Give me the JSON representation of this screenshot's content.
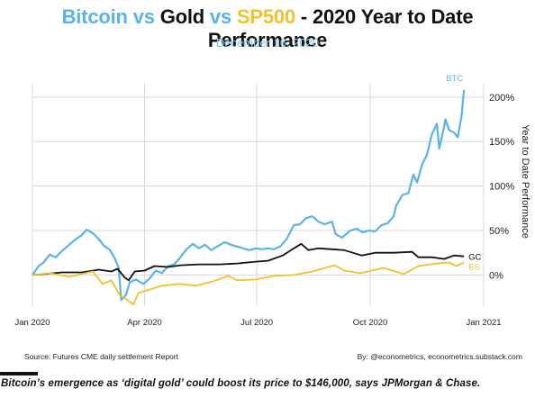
{
  "header": {
    "title_parts": [
      "Bitcoin",
      "vs",
      "Gold",
      "vs",
      "SP500",
      "- 2020 Year to Date Performance"
    ],
    "subtitle": "December 16, 2020"
  },
  "footer": {
    "source": "Source: Futures CME daily settlement Report",
    "byline": "By: @econometrics, econometrics.substack.com"
  },
  "caption": "Bitcoin’s emergence as ‘digital gold’ could boost its price to $146,000, says JPMorgan & Chase.",
  "colors": {
    "btc": "#5ab4e5",
    "gold": "#111111",
    "sp": "#f2c12e",
    "grid": "#d8d8d8"
  },
  "chart_data": {
    "type": "line",
    "title": "Bitcoin vs Gold vs SP500 - 2020 Year to Date Performance",
    "subtitle": "December 16, 2020",
    "ylabel": "Year to Date Performance",
    "xlabel": "",
    "y_unit": "%",
    "ylim": [
      -35,
      215
    ],
    "xlim": [
      "2020-01-01",
      "2021-01-01"
    ],
    "x_ticks": [
      {
        "date": "2020-01-01",
        "label": "Jan 2020"
      },
      {
        "date": "2020-04-01",
        "label": "Apr 2020"
      },
      {
        "date": "2020-07-01",
        "label": "Jul 2020"
      },
      {
        "date": "2020-10-01",
        "label": "Oct 2020"
      },
      {
        "date": "2021-01-01",
        "label": "Jan 2021"
      }
    ],
    "y_ticks": [
      0,
      50,
      100,
      150,
      200
    ],
    "y_tick_labels": [
      "0%",
      "50%",
      "100%",
      "150%",
      "200%"
    ],
    "grid": true,
    "series": [
      {
        "name": "BTC",
        "color": "#5ab4e5",
        "points": [
          [
            "2020-01-01",
            0
          ],
          [
            "2020-01-06",
            10
          ],
          [
            "2020-01-10",
            14
          ],
          [
            "2020-01-15",
            23
          ],
          [
            "2020-01-20",
            20
          ],
          [
            "2020-01-25",
            27
          ],
          [
            "2020-01-30",
            33
          ],
          [
            "2020-02-05",
            40
          ],
          [
            "2020-02-10",
            45
          ],
          [
            "2020-02-14",
            51
          ],
          [
            "2020-02-19",
            47
          ],
          [
            "2020-02-24",
            40
          ],
          [
            "2020-02-28",
            33
          ],
          [
            "2020-03-04",
            28
          ],
          [
            "2020-03-08",
            18
          ],
          [
            "2020-03-11",
            8
          ],
          [
            "2020-03-13",
            -28
          ],
          [
            "2020-03-17",
            -22
          ],
          [
            "2020-03-20",
            -8
          ],
          [
            "2020-03-25",
            -5
          ],
          [
            "2020-03-31",
            -10
          ],
          [
            "2020-04-05",
            -4
          ],
          [
            "2020-04-10",
            5
          ],
          [
            "2020-04-15",
            2
          ],
          [
            "2020-04-20",
            10
          ],
          [
            "2020-04-25",
            12
          ],
          [
            "2020-04-30",
            20
          ],
          [
            "2020-05-05",
            29
          ],
          [
            "2020-05-10",
            35
          ],
          [
            "2020-05-15",
            30
          ],
          [
            "2020-05-20",
            34
          ],
          [
            "2020-05-25",
            28
          ],
          [
            "2020-05-31",
            33
          ],
          [
            "2020-06-05",
            37
          ],
          [
            "2020-06-10",
            34
          ],
          [
            "2020-06-15",
            32
          ],
          [
            "2020-06-20",
            30
          ],
          [
            "2020-06-25",
            28
          ],
          [
            "2020-06-30",
            30
          ],
          [
            "2020-07-05",
            29
          ],
          [
            "2020-07-10",
            30
          ],
          [
            "2020-07-15",
            29
          ],
          [
            "2020-07-20",
            32
          ],
          [
            "2020-07-25",
            40
          ],
          [
            "2020-07-31",
            56
          ],
          [
            "2020-08-05",
            57
          ],
          [
            "2020-08-10",
            64
          ],
          [
            "2020-08-15",
            66
          ],
          [
            "2020-08-20",
            60
          ],
          [
            "2020-08-25",
            57
          ],
          [
            "2020-08-31",
            60
          ],
          [
            "2020-09-03",
            46
          ],
          [
            "2020-09-08",
            42
          ],
          [
            "2020-09-15",
            50
          ],
          [
            "2020-09-20",
            52
          ],
          [
            "2020-09-25",
            48
          ],
          [
            "2020-09-30",
            50
          ],
          [
            "2020-10-05",
            49
          ],
          [
            "2020-10-10",
            56
          ],
          [
            "2020-10-15",
            58
          ],
          [
            "2020-10-20",
            66
          ],
          [
            "2020-10-22",
            78
          ],
          [
            "2020-10-27",
            90
          ],
          [
            "2020-11-01",
            92
          ],
          [
            "2020-11-05",
            113
          ],
          [
            "2020-11-08",
            104
          ],
          [
            "2020-11-12",
            124
          ],
          [
            "2020-11-16",
            135
          ],
          [
            "2020-11-20",
            158
          ],
          [
            "2020-11-24",
            170
          ],
          [
            "2020-11-26",
            142
          ],
          [
            "2020-11-30",
            167
          ],
          [
            "2020-12-01",
            175
          ],
          [
            "2020-12-04",
            163
          ],
          [
            "2020-12-08",
            160
          ],
          [
            "2020-12-11",
            155
          ],
          [
            "2020-12-14",
            178
          ],
          [
            "2020-12-16",
            208
          ]
        ]
      },
      {
        "name": "GC",
        "color": "#111111",
        "points": [
          [
            "2020-01-01",
            0
          ],
          [
            "2020-01-10",
            1
          ],
          [
            "2020-01-25",
            3
          ],
          [
            "2020-02-10",
            3
          ],
          [
            "2020-02-24",
            6
          ],
          [
            "2020-03-05",
            4
          ],
          [
            "2020-03-10",
            7
          ],
          [
            "2020-03-16",
            -3
          ],
          [
            "2020-03-19",
            -6
          ],
          [
            "2020-03-24",
            4
          ],
          [
            "2020-04-01",
            5
          ],
          [
            "2020-04-09",
            10
          ],
          [
            "2020-04-20",
            9
          ],
          [
            "2020-04-30",
            11
          ],
          [
            "2020-05-15",
            12
          ],
          [
            "2020-06-01",
            12
          ],
          [
            "2020-06-15",
            13
          ],
          [
            "2020-06-30",
            15
          ],
          [
            "2020-07-10",
            16
          ],
          [
            "2020-07-22",
            22
          ],
          [
            "2020-07-30",
            29
          ],
          [
            "2020-08-06",
            35
          ],
          [
            "2020-08-12",
            28
          ],
          [
            "2020-08-20",
            30
          ],
          [
            "2020-08-31",
            29
          ],
          [
            "2020-09-10",
            28
          ],
          [
            "2020-09-24",
            22
          ],
          [
            "2020-10-05",
            25
          ],
          [
            "2020-10-20,",
            25
          ],
          [
            "2020-10-20",
            25
          ],
          [
            "2020-11-04",
            26
          ],
          [
            "2020-11-09",
            20
          ],
          [
            "2020-11-20",
            20
          ],
          [
            "2020-11-30",
            18
          ],
          [
            "2020-12-08",
            22
          ],
          [
            "2020-12-16",
            21
          ]
        ]
      },
      {
        "name": "ES",
        "color": "#f2c12e",
        "points": [
          [
            "2020-01-01",
            0
          ],
          [
            "2020-01-15",
            2
          ],
          [
            "2020-01-31",
            -2
          ],
          [
            "2020-02-19",
            4
          ],
          [
            "2020-02-27",
            -10
          ],
          [
            "2020-03-05",
            -6
          ],
          [
            "2020-03-12",
            -23
          ],
          [
            "2020-03-18",
            -28
          ],
          [
            "2020-03-23",
            -33
          ],
          [
            "2020-03-27",
            -20
          ],
          [
            "2020-04-06",
            -16
          ],
          [
            "2020-04-15",
            -12
          ],
          [
            "2020-04-29",
            -10
          ],
          [
            "2020-05-13",
            -12
          ],
          [
            "2020-05-27",
            -7
          ],
          [
            "2020-06-08",
            -1
          ],
          [
            "2020-06-15",
            -6
          ],
          [
            "2020-06-30",
            -5
          ],
          [
            "2020-07-15",
            -1
          ],
          [
            "2020-07-31",
            0
          ],
          [
            "2020-08-15",
            4
          ],
          [
            "2020-09-02",
            11
          ],
          [
            "2020-09-10",
            5
          ],
          [
            "2020-09-23",
            2
          ],
          [
            "2020-10-12",
            8
          ],
          [
            "2020-10-28",
            1
          ],
          [
            "2020-11-09",
            10
          ],
          [
            "2020-11-24",
            13
          ],
          [
            "2020-12-04",
            14
          ],
          [
            "2020-12-10",
            10
          ],
          [
            "2020-12-16",
            14
          ]
        ]
      }
    ]
  }
}
